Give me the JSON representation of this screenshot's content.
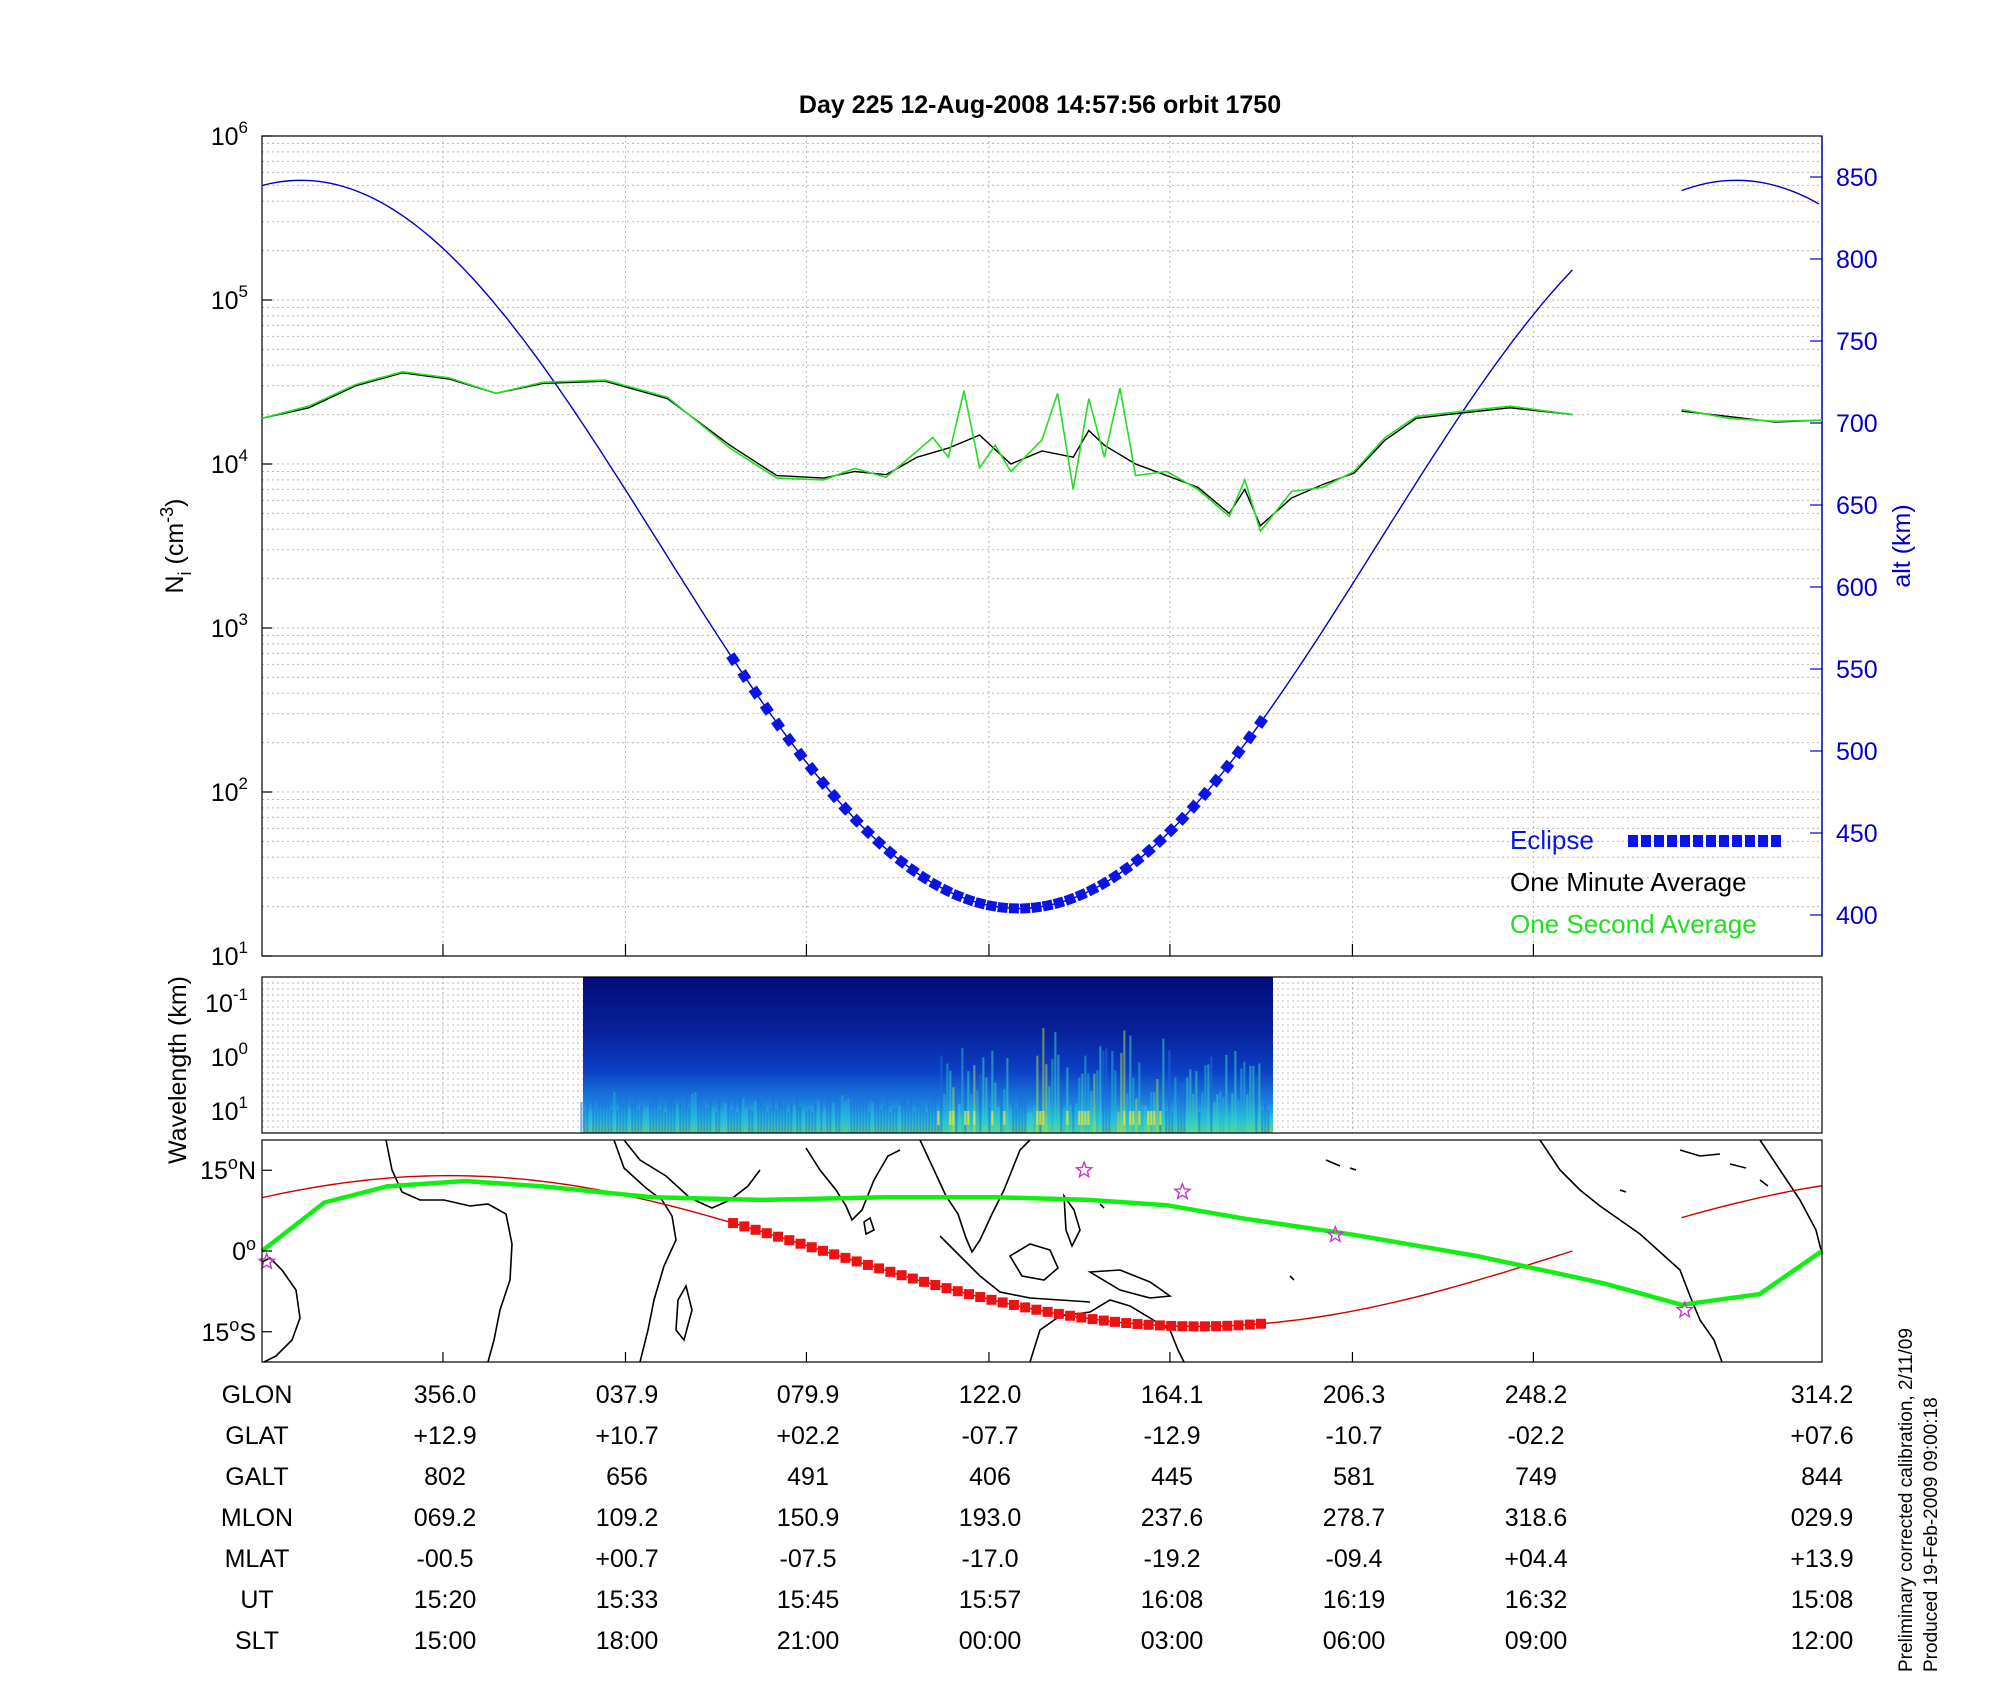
{
  "title": "Day 225  12-Aug-2008 14:57:56   orbit 1750",
  "colors": {
    "altitude": "#0000c8",
    "eclipse": "#0a14e6",
    "one_minute": "#000000",
    "one_second": "#22dd22",
    "track_red": "#cc0000",
    "track_eclipse": "#ee1111",
    "magnetic_equator": "#11ee11",
    "star": "#cc33cc"
  },
  "chart_data": [
    {
      "type": "line",
      "panel": "density-altitude",
      "ylabel": "N",
      "ylabel_sub": "i",
      "ylabel_units": "(cm",
      "ylabel_units_sup": "-3",
      "ylabel_units_end": ")",
      "yscale": "log",
      "ylim": [
        10,
        1000000
      ],
      "y_ticks": [
        {
          "base": "10",
          "exp": "1"
        },
        {
          "base": "10",
          "exp": "2"
        },
        {
          "base": "10",
          "exp": "3"
        },
        {
          "base": "10",
          "exp": "4"
        },
        {
          "base": "10",
          "exp": "5"
        },
        {
          "base": "10",
          "exp": "6"
        }
      ],
      "y2label": "alt (km)",
      "y2lim": [
        375,
        875
      ],
      "y2_ticks": [
        "400",
        "450",
        "500",
        "550",
        "600",
        "650",
        "700",
        "750",
        "800",
        "850"
      ],
      "grid": true,
      "legend_position": "bottom-right",
      "legend": {
        "eclipse": "Eclipse",
        "one_minute": "One Minute Average",
        "one_second": "One Second Average"
      },
      "altitude_km": {
        "note": "x in fraction of orbit period shown (0-1); gap near 0.84-0.91",
        "perigee": {
          "x": 0.485,
          "alt": 404
        },
        "apogee": {
          "x": 0.025,
          "alt": 848
        },
        "segments": [
          [
            0.0,
            0.84
          ],
          [
            0.91,
            1.0
          ]
        ]
      },
      "eclipse_range_x": [
        0.302,
        0.645
      ],
      "series": [
        {
          "name": "One Minute Average",
          "x": [
            0.0,
            0.03,
            0.06,
            0.09,
            0.12,
            0.15,
            0.18,
            0.22,
            0.26,
            0.3,
            0.33,
            0.36,
            0.38,
            0.4,
            0.42,
            0.44,
            0.46,
            0.48,
            0.5,
            0.52,
            0.53,
            0.54,
            0.56,
            0.58,
            0.6,
            0.62,
            0.63,
            0.64,
            0.66,
            0.68,
            0.7,
            0.72,
            0.74,
            0.76,
            0.8,
            0.84,
            0.91,
            0.94,
            0.97,
            1.0
          ],
          "y": [
            19000,
            22000,
            30000,
            36000,
            33000,
            27000,
            31000,
            32000,
            25000,
            13000,
            8500,
            8200,
            9000,
            8600,
            11000,
            12500,
            15000,
            10000,
            12000,
            11000,
            16000,
            13000,
            10000,
            8500,
            7200,
            5000,
            7000,
            4200,
            6200,
            7500,
            8800,
            14000,
            19000,
            20000,
            22000,
            20000,
            21000,
            19500,
            18000,
            18500
          ]
        },
        {
          "name": "One Second Average",
          "x": [
            0.0,
            0.03,
            0.06,
            0.09,
            0.12,
            0.15,
            0.18,
            0.22,
            0.26,
            0.3,
            0.33,
            0.36,
            0.38,
            0.4,
            0.42,
            0.43,
            0.44,
            0.45,
            0.46,
            0.47,
            0.48,
            0.5,
            0.51,
            0.52,
            0.53,
            0.54,
            0.55,
            0.56,
            0.58,
            0.6,
            0.62,
            0.63,
            0.64,
            0.66,
            0.68,
            0.7,
            0.72,
            0.74,
            0.76,
            0.8,
            0.84,
            0.91,
            0.94,
            0.97,
            1.0
          ],
          "y": [
            19000,
            22500,
            30500,
            36500,
            33500,
            27000,
            31500,
            32500,
            25500,
            12500,
            8200,
            8000,
            9400,
            8300,
            12000,
            14500,
            11000,
            28000,
            9500,
            13000,
            9000,
            14000,
            27000,
            7000,
            25000,
            11000,
            29000,
            8500,
            9000,
            7000,
            4800,
            8000,
            3900,
            6800,
            7200,
            9000,
            14500,
            19500,
            20500,
            22500,
            20000,
            21500,
            19000,
            18200,
            18500
          ]
        }
      ],
      "x_range": [
        0,
        1
      ]
    },
    {
      "type": "heatmap",
      "panel": "wavelength-spectrogram",
      "ylabel": "Wavelength (km)",
      "y_ticks": [
        {
          "base": "10",
          "exp": "-1"
        },
        {
          "base": "10",
          "exp": "0"
        },
        {
          "base": "10",
          "exp": "1"
        }
      ],
      "data_range_x": [
        0.204,
        0.646
      ],
      "note": "power spectral density; low (dark blue) to high (yellow)"
    },
    {
      "type": "map",
      "panel": "ground-track",
      "y_ticks": [
        {
          "deg": "15",
          "hemi": "N"
        },
        {
          "deg": "0",
          "hemi": ""
        },
        {
          "deg": "15",
          "hemi": "S"
        }
      ],
      "lat_range": [
        -20,
        20
      ]
    }
  ],
  "table": {
    "rows": [
      {
        "label": "GLON",
        "values": [
          "356.0",
          "037.9",
          "079.9",
          "122.0",
          "164.1",
          "206.3",
          "248.2",
          "314.2"
        ]
      },
      {
        "label": "GLAT",
        "values": [
          "+12.9",
          "+10.7",
          "+02.2",
          "-07.7",
          "-12.9",
          "-10.7",
          "-02.2",
          "+07.6"
        ]
      },
      {
        "label": "GALT",
        "values": [
          "802",
          "656",
          "491",
          "406",
          "445",
          "581",
          "749",
          "844"
        ]
      },
      {
        "label": "MLON",
        "values": [
          "069.2",
          "109.2",
          "150.9",
          "193.0",
          "237.6",
          "278.7",
          "318.6",
          "029.9"
        ]
      },
      {
        "label": "MLAT",
        "values": [
          "-00.5",
          "+00.7",
          "-07.5",
          "-17.0",
          "-19.2",
          "-09.4",
          "+04.4",
          "+13.9"
        ]
      },
      {
        "label": "UT",
        "values": [
          "15:20",
          "15:33",
          "15:45",
          "15:57",
          "16:08",
          "16:19",
          "16:32",
          "15:08"
        ]
      },
      {
        "label": "SLT",
        "values": [
          "15:00",
          "18:00",
          "21:00",
          "00:00",
          "03:00",
          "06:00",
          "09:00",
          "12:00"
        ]
      }
    ]
  },
  "footer": {
    "line1": "Preliminary corrected calibration, 2/11/09",
    "line2": "Produced 19-Feb-2009 09:00:18"
  }
}
